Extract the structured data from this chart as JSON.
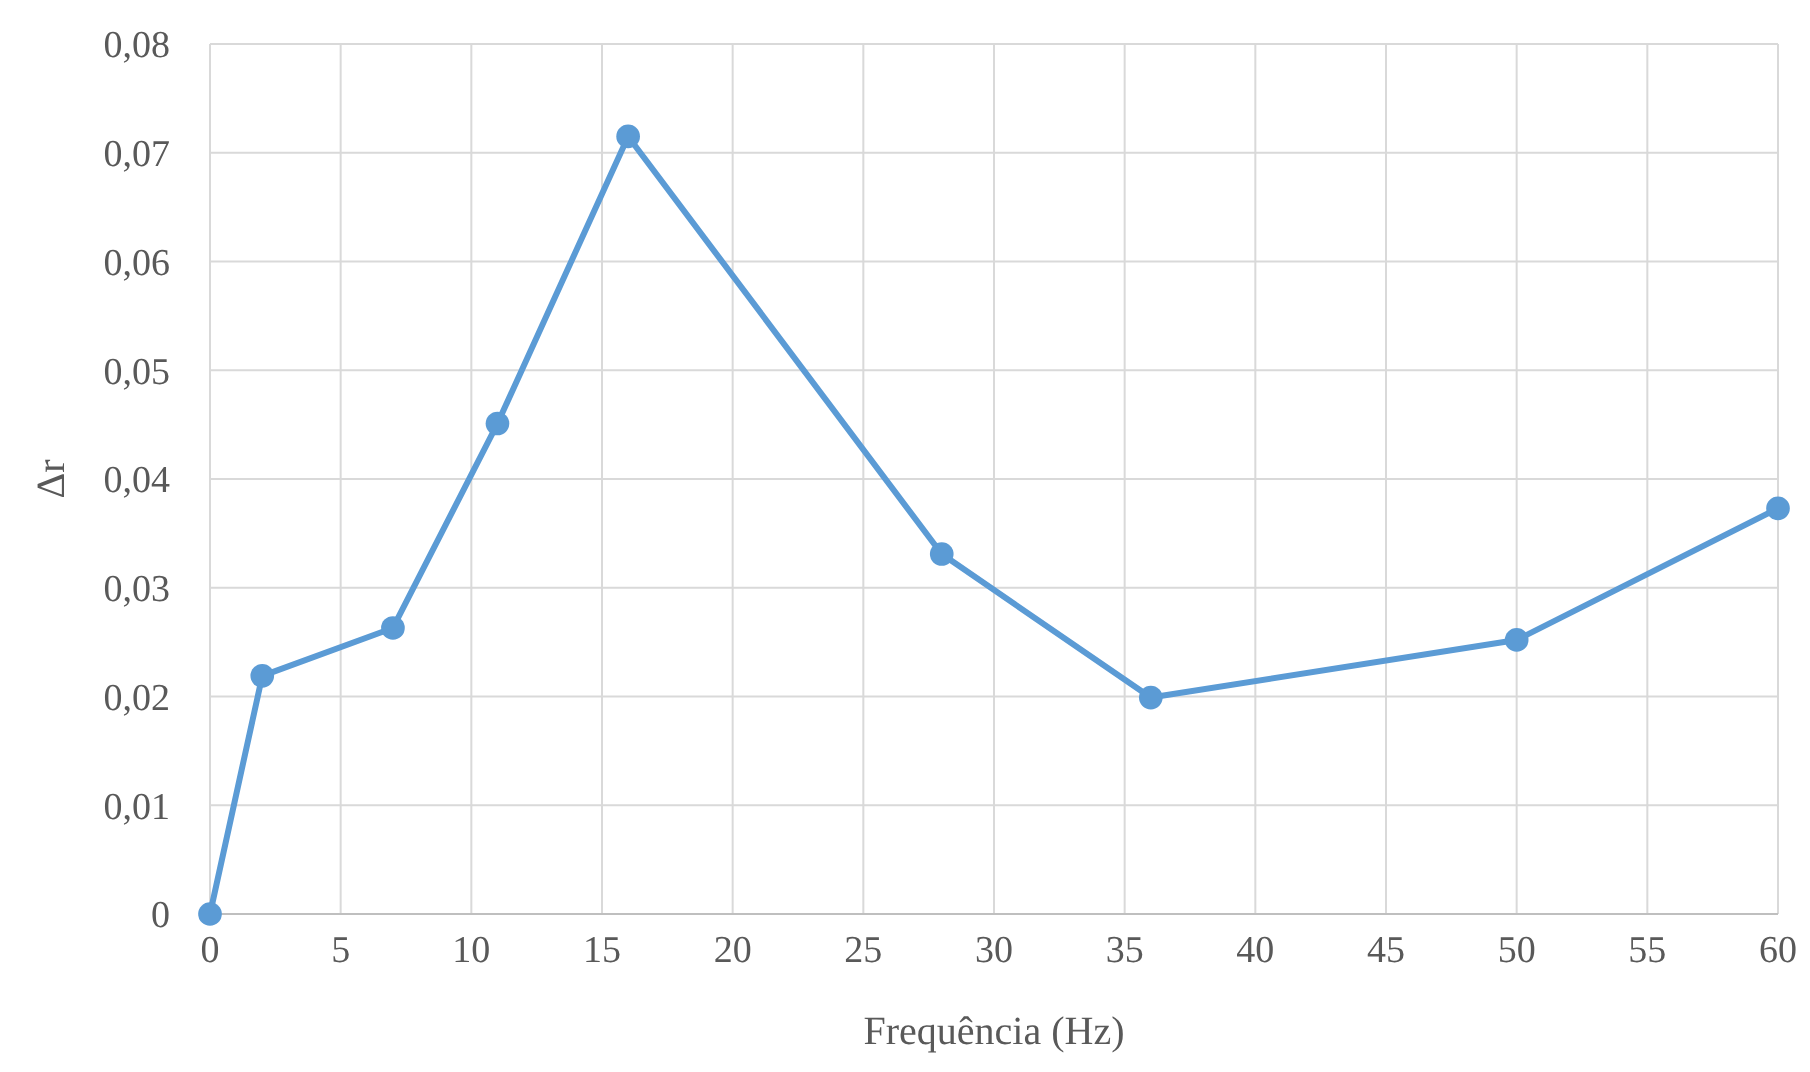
{
  "chart_data": {
    "type": "line",
    "xlabel": "Frequência (Hz)",
    "ylabel": "Δr",
    "x": [
      0,
      2,
      7,
      11,
      16,
      28,
      36,
      50,
      60
    ],
    "series": [
      {
        "color": "#5b9bd5",
        "values": [
          0,
          0.0219,
          0.0263,
          0.0451,
          0.0715,
          0.0331,
          0.0199,
          0.0252,
          0.0373
        ]
      }
    ],
    "xlim": [
      0,
      60
    ],
    "xticks": [
      0,
      5,
      10,
      15,
      20,
      25,
      30,
      35,
      40,
      45,
      50,
      55,
      60
    ],
    "ylim": [
      0,
      0.08
    ],
    "yticks": [
      0,
      {
        "value": 0.01,
        "label": "0,01"
      },
      {
        "value": 0.02,
        "label": "0,02"
      },
      {
        "value": 0.03,
        "label": "0,03"
      },
      {
        "value": 0.04,
        "label": "0,04"
      },
      {
        "value": 0.05,
        "label": "0,05"
      },
      {
        "value": 0.06,
        "label": "0,06"
      },
      {
        "value": 0.07,
        "label": "0,07"
      },
      {
        "value": 0.08,
        "label": "0,08"
      }
    ],
    "grid": true,
    "marker": "circle",
    "line_style": "solid"
  }
}
